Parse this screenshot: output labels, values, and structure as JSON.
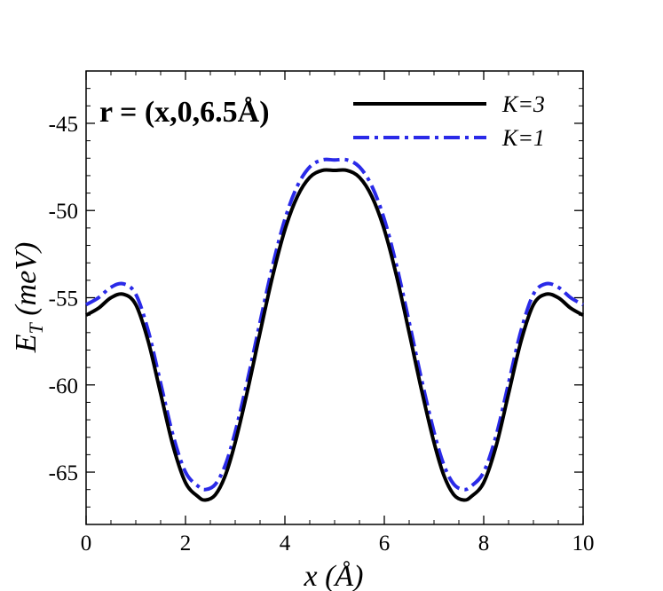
{
  "chart_data": {
    "type": "line",
    "xlabel": "x (Å)",
    "ylabel": "E_T (meV)",
    "ylabel_main": "E",
    "ylabel_sub": "T",
    "ylabel_unit": " (meV)",
    "xlim": [
      0,
      10
    ],
    "ylim": [
      -68,
      -42
    ],
    "x_ticks": [
      0,
      2,
      4,
      6,
      8,
      10
    ],
    "x_tick_labels": [
      "0",
      "2",
      "4",
      "6",
      "8",
      "10"
    ],
    "y_ticks": [
      -45,
      -50,
      -55,
      -60,
      -65
    ],
    "y_tick_labels": [
      "-45",
      "-50",
      "-55",
      "-60",
      "-65"
    ],
    "grid": false,
    "legend_position": "top-right",
    "annotation": "r = (x,0,6.5Å)",
    "x": [
      0,
      0.25,
      0.5,
      0.75,
      1.0,
      1.25,
      1.5,
      1.75,
      2.0,
      2.25,
      2.4,
      2.6,
      2.8,
      3.0,
      3.25,
      3.5,
      3.75,
      4.0,
      4.25,
      4.5,
      4.75,
      5.0,
      5.25,
      5.5,
      5.75,
      6.0,
      6.25,
      6.5,
      6.75,
      7.0,
      7.2,
      7.4,
      7.6,
      7.75,
      8.0,
      8.25,
      8.5,
      8.75,
      9.0,
      9.25,
      9.5,
      9.75,
      10.0
    ],
    "series": [
      {
        "name": "K=3",
        "color": "#000000",
        "style": "solid",
        "values": [
          -56.0,
          -55.6,
          -55.0,
          -54.8,
          -55.4,
          -57.5,
          -60.5,
          -63.5,
          -65.6,
          -66.4,
          -66.6,
          -66.3,
          -65.2,
          -63.3,
          -60.3,
          -57.0,
          -53.8,
          -51.1,
          -49.2,
          -48.1,
          -47.7,
          -47.7,
          -47.7,
          -48.1,
          -49.2,
          -51.1,
          -53.8,
          -57.0,
          -60.3,
          -63.3,
          -65.2,
          -66.3,
          -66.6,
          -66.4,
          -65.6,
          -63.5,
          -60.5,
          -57.5,
          -55.4,
          -54.8,
          -55.0,
          -55.6,
          -56.0
        ]
      },
      {
        "name": "K=1",
        "color": "#2a2ae8",
        "style": "dashdot",
        "values": [
          -55.4,
          -55.0,
          -54.4,
          -54.2,
          -54.8,
          -56.9,
          -59.9,
          -62.9,
          -65.0,
          -65.8,
          -66.0,
          -65.7,
          -64.6,
          -62.7,
          -59.7,
          -56.4,
          -53.2,
          -50.5,
          -48.6,
          -47.5,
          -47.1,
          -47.1,
          -47.1,
          -47.5,
          -48.6,
          -50.5,
          -53.2,
          -56.4,
          -59.7,
          -62.7,
          -64.6,
          -65.7,
          -66.0,
          -65.8,
          -65.0,
          -62.9,
          -59.9,
          -56.9,
          -54.8,
          -54.2,
          -54.4,
          -55.0,
          -55.4
        ]
      }
    ]
  }
}
